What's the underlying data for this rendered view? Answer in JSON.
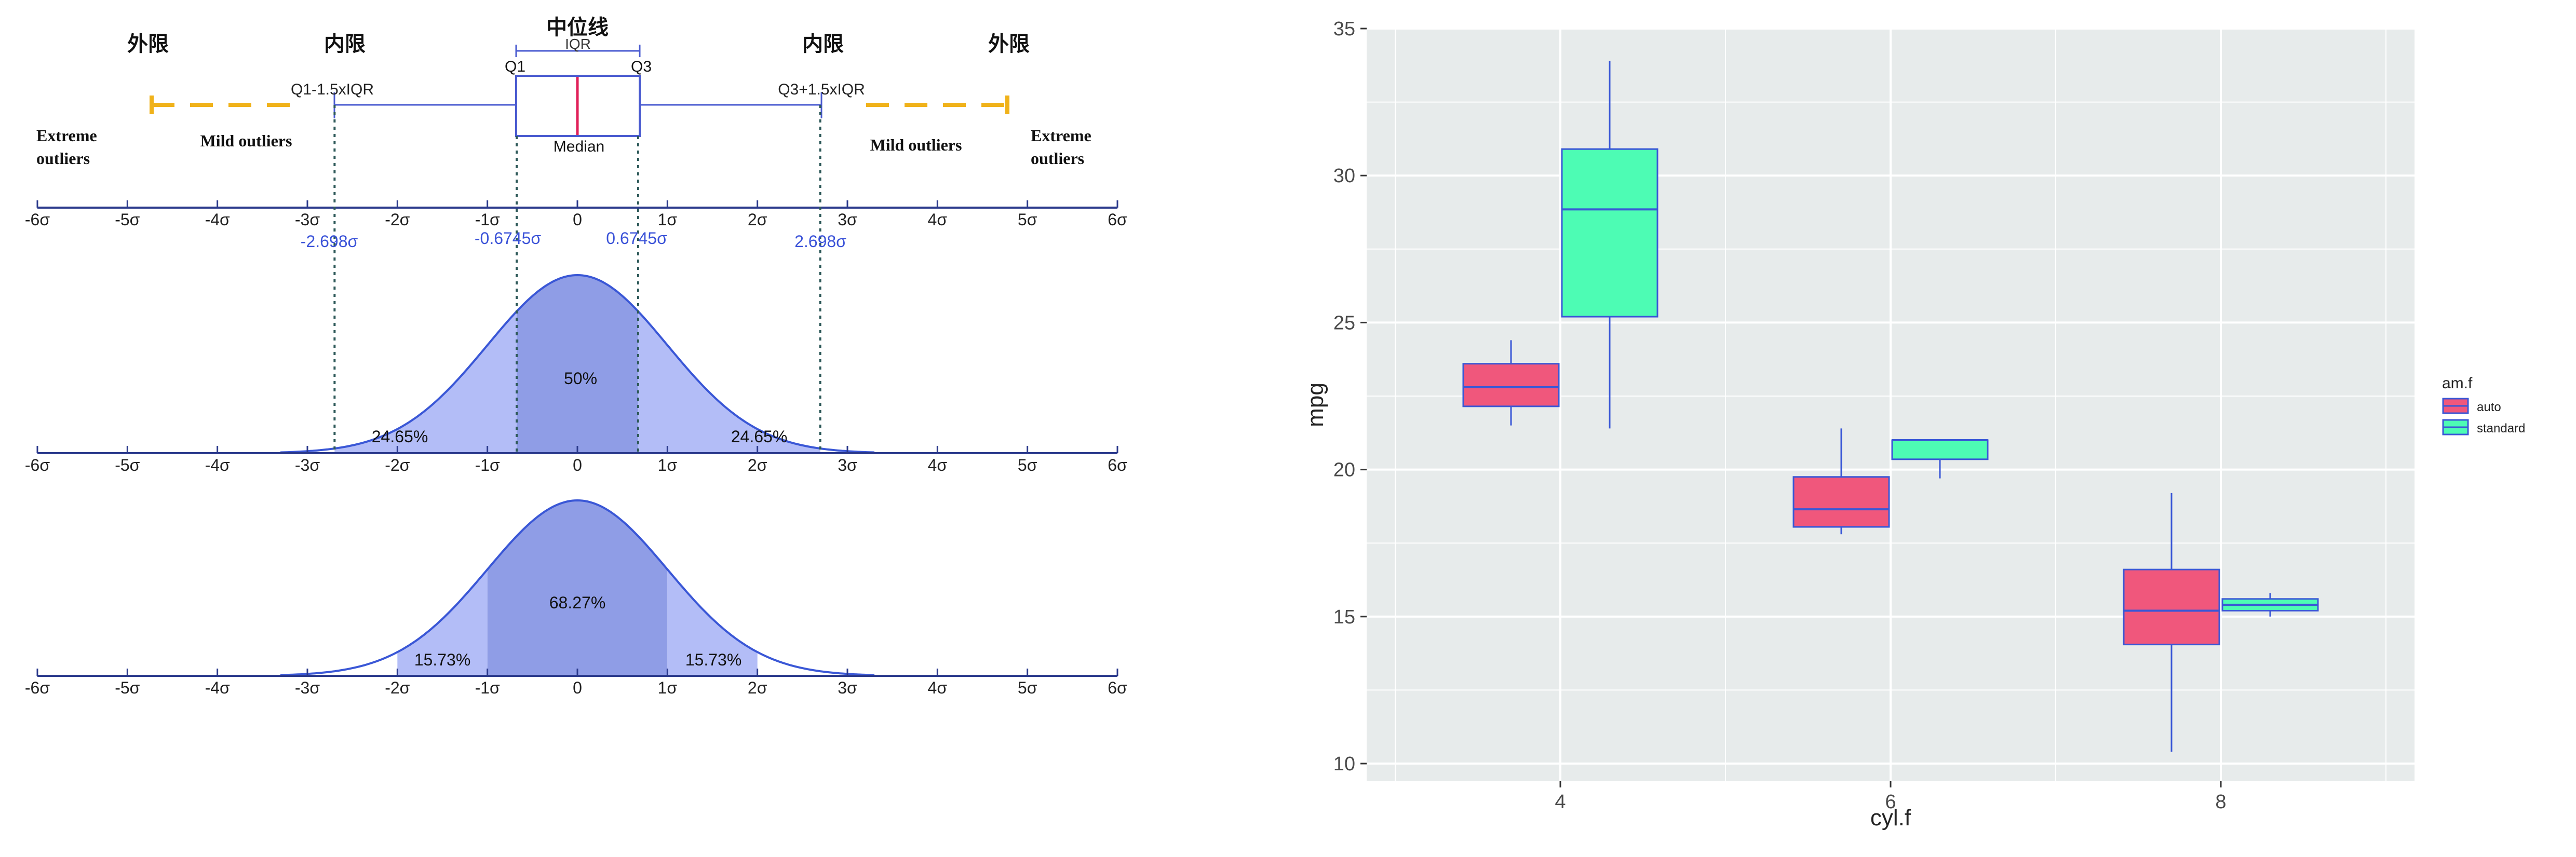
{
  "left_diagram": {
    "title": "中位线",
    "outer_fence_label_left": "外限",
    "inner_fence_label_left": "内限",
    "inner_fence_label_right": "内限",
    "outer_fence_label_right": "外限",
    "iqr_label": "IQR",
    "q1_label": "Q1",
    "q3_label": "Q3",
    "median_label": "Median",
    "lower_fence_label": "Q1-1.5xIQR",
    "upper_fence_label": "Q3+1.5xIQR",
    "extreme_outliers_left": [
      "Extreme",
      "outliers"
    ],
    "extreme_outliers_right": [
      "Extreme",
      "outliers"
    ],
    "mild_outliers_left": "Mild outliers",
    "mild_outliers_right": "Mild outliers",
    "sigma_ticks": [
      "-6σ",
      "-5σ",
      "-4σ",
      "-3σ",
      "-2σ",
      "-1σ",
      "0",
      "1σ",
      "2σ",
      "3σ",
      "4σ",
      "5σ",
      "6σ"
    ],
    "sigma_values": [
      -6,
      -5,
      -4,
      -3,
      -2,
      -1,
      0,
      1,
      2,
      3,
      4,
      5,
      6
    ],
    "reference_values": [
      {
        "label": "-2.698σ",
        "value": -2.698
      },
      {
        "label": "-0.6745σ",
        "value": -0.6745
      },
      {
        "label": "0.6745σ",
        "value": 0.6745
      },
      {
        "label": "2.698σ",
        "value": 2.698
      }
    ],
    "curve1_regions": [
      {
        "label": "24.65%",
        "from": -2.698,
        "to": -0.6745
      },
      {
        "label": "50%",
        "from": -0.6745,
        "to": 0.6745
      },
      {
        "label": "24.65%",
        "from": 0.6745,
        "to": 2.698
      }
    ],
    "curve2_regions": [
      {
        "label": "15.73%",
        "from": -2,
        "to": -1
      },
      {
        "label": "68.27%",
        "from": -1,
        "to": 1
      },
      {
        "label": "15.73%",
        "from": 1,
        "to": 2
      }
    ],
    "colors": {
      "axis": "#2b3a8c",
      "box": "#4a5bd0",
      "median": "#e0205a",
      "whisker_dash": "#f0b21a",
      "blue_text": "#3a52d8",
      "curve": "#3a57d6",
      "fill_light": "#b3bdf7",
      "fill_dark": "#8f9de6",
      "dotted": "#2f5a5a"
    }
  },
  "chart_data": {
    "type": "box",
    "title": "",
    "xlabel": "cyl.f",
    "ylabel": "mpg",
    "categories": [
      "4",
      "6",
      "8"
    ],
    "ylim": [
      9.4,
      35
    ],
    "yticks": [
      10,
      15,
      20,
      25,
      30,
      35
    ],
    "grid": true,
    "legend": {
      "title": "am.f",
      "position": "right",
      "entries": [
        "auto",
        "standard"
      ]
    },
    "series": [
      {
        "name": "auto",
        "color": "#f0577c",
        "boxes": [
          {
            "category": "4",
            "min": 21.5,
            "q1": 22.15,
            "median": 22.8,
            "q3": 23.6,
            "max": 24.4
          },
          {
            "category": "6",
            "min": 17.8,
            "q1": 18.05,
            "median": 18.65,
            "q3": 19.75,
            "max": 21.4
          },
          {
            "category": "8",
            "min": 10.4,
            "q1": 14.05,
            "median": 15.2,
            "q3": 16.6,
            "max": 19.2
          }
        ]
      },
      {
        "name": "standard",
        "color": "#4dfcb4",
        "boxes": [
          {
            "category": "4",
            "min": 21.4,
            "q1": 25.2,
            "median": 28.85,
            "q3": 30.9,
            "max": 33.9
          },
          {
            "category": "6",
            "min": 19.7,
            "q1": 20.35,
            "median": 21.0,
            "q3": 21.0,
            "max": 21.0
          },
          {
            "category": "8",
            "min": 15.0,
            "q1": 15.2,
            "median": 15.4,
            "q3": 15.6,
            "max": 15.8
          }
        ]
      }
    ],
    "colors": {
      "panel": "#e7ebeb",
      "grid": "#ffffff",
      "whisker": "#3a57d6",
      "tick_text": "#4a4a4a",
      "title_text": "#222222"
    }
  }
}
